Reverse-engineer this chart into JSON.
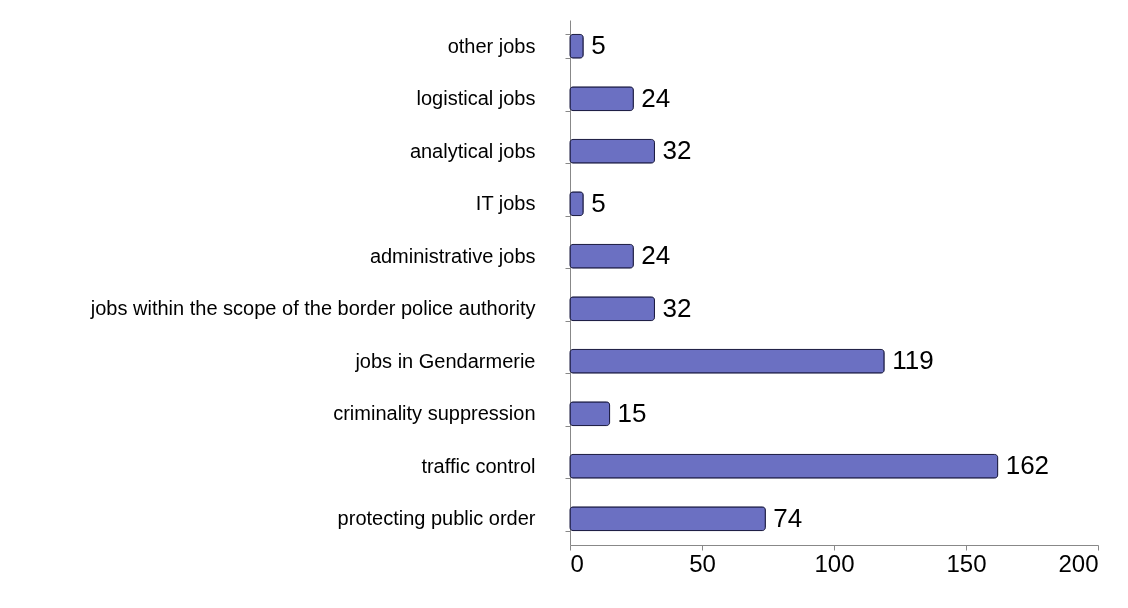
{
  "chart_data": {
    "type": "bar",
    "orientation": "horizontal",
    "categories": [
      "other jobs",
      "logistical jobs",
      "analytical jobs",
      "IT jobs",
      "administrative jobs",
      "jobs within the scope of the border police authority",
      "jobs in Gendarmerie",
      "criminality suppression",
      "traffic control",
      "protecting public order"
    ],
    "values": [
      5,
      24,
      32,
      5,
      24,
      32,
      119,
      15,
      162,
      74
    ],
    "color": "#6b70c2",
    "xlim": [
      0,
      200
    ],
    "xticks": [
      0,
      50,
      100,
      150,
      200
    ],
    "data_labels": true,
    "grid": false
  }
}
